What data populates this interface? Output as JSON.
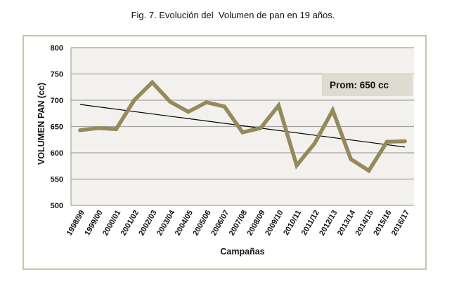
{
  "figure": {
    "caption": "Fig. 7. Evolución del  Volumen de pan en 19 años."
  },
  "colors": {
    "series_line": "#948a5a",
    "trend_line": "#000000",
    "plot_background": "#f2f1ed",
    "gridline": "#a3a3a3",
    "frame_border": "#c9c4a2",
    "annotation_background": "#dedbd0"
  },
  "chart_data": {
    "type": "line",
    "title": "Fig. 7. Evolución del  Volumen de pan en 19 años.",
    "xlabel": "Campañas",
    "ylabel": "VOLUMEN PAN (cc)",
    "categories": [
      "1998/99",
      "1999/00",
      "2000/01",
      "2001/02",
      "2002/03",
      "2003/04",
      "2004/05",
      "2005/06",
      "2006/07",
      "2007/08",
      "2008/09",
      "2009/10",
      "2010/11",
      "2011/12",
      "2012/13",
      "2013/14",
      "2014/15",
      "2015/16",
      "2016/17"
    ],
    "series": [
      {
        "name": "Volumen de pan",
        "values": [
          643,
          647,
          645,
          700,
          734,
          697,
          678,
          696,
          688,
          639,
          647,
          690,
          576,
          618,
          681,
          588,
          566,
          621,
          622
        ]
      }
    ],
    "trendline": {
      "type": "linear",
      "start": 692,
      "end": 611
    },
    "annotation": "Prom: 650 cc",
    "ylim": [
      500,
      800
    ],
    "yticks": [
      500,
      550,
      600,
      650,
      700,
      750,
      800
    ],
    "grid": true,
    "legend": "none"
  }
}
